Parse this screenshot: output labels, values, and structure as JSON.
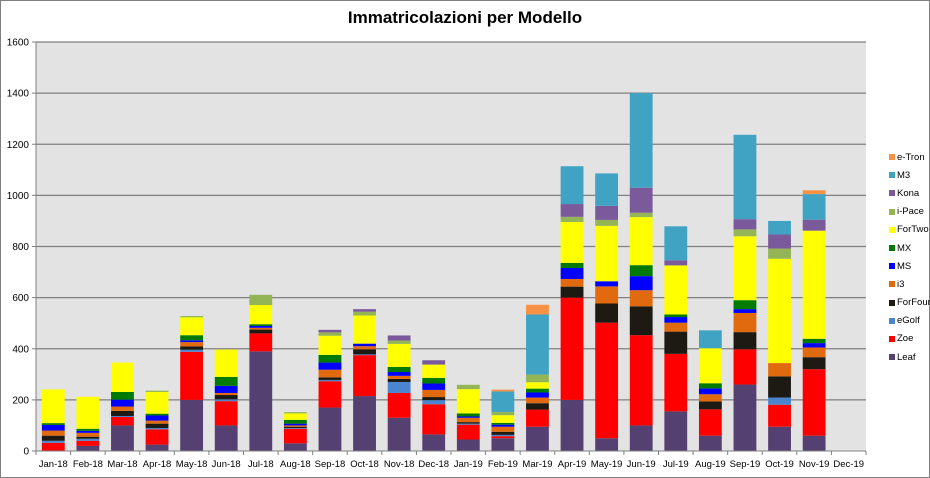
{
  "chart_data": {
    "type": "bar",
    "stacked": true,
    "title": "Immatricolazioni per Modello",
    "xlabel": "",
    "ylabel": "",
    "ylim": [
      0,
      1600
    ],
    "yticks": [
      0,
      200,
      400,
      600,
      800,
      1000,
      1200,
      1400,
      1600
    ],
    "grid": true,
    "legend_position": "right",
    "categories": [
      "Jan-18",
      "Feb-18",
      "Mar-18",
      "Apr-18",
      "May-18",
      "Jun-18",
      "Jul-18",
      "Aug-18",
      "Sep-18",
      "Oct-18",
      "Nov-18",
      "Dec-18",
      "Jan-19",
      "Feb-19",
      "Mar-19",
      "Apr-19",
      "May-19",
      "Jun-19",
      "Jul-19",
      "Aug-19",
      "Sep-19",
      "Oct-19",
      "Nov-19",
      "Dec-19"
    ],
    "series": [
      {
        "name": "Leaf",
        "color": "#554171",
        "values": [
          0,
          20,
          100,
          25,
          200,
          100,
          390,
          30,
          170,
          215,
          130,
          65,
          45,
          50,
          95,
          200,
          50,
          100,
          155,
          60,
          260,
          95,
          60,
          0
        ]
      },
      {
        "name": "Zoe",
        "color": "#ff0000",
        "values": [
          32,
          20,
          33,
          60,
          188,
          95,
          70,
          57,
          103,
          160,
          97,
          118,
          58,
          8,
          67,
          400,
          452,
          353,
          225,
          103,
          138,
          86,
          260,
          0
        ]
      },
      {
        "name": "eGolf",
        "color": "#4a86d0",
        "values": [
          8,
          8,
          4,
          5,
          8,
          7,
          0,
          3,
          5,
          3,
          43,
          16,
          4,
          5,
          0,
          0,
          0,
          0,
          0,
          0,
          0,
          28,
          0,
          0
        ]
      },
      {
        "name": "ForFour",
        "color": "#1d1a14",
        "values": [
          20,
          8,
          20,
          17,
          13,
          17,
          15,
          5,
          10,
          20,
          12,
          12,
          6,
          12,
          25,
          43,
          75,
          113,
          87,
          31,
          67,
          83,
          47,
          0
        ]
      },
      {
        "name": "i3",
        "color": "#e26a0e",
        "values": [
          20,
          15,
          17,
          12,
          17,
          8,
          7,
          5,
          30,
          12,
          12,
          28,
          17,
          20,
          22,
          30,
          67,
          63,
          35,
          28,
          75,
          52,
          38,
          0
        ]
      },
      {
        "name": "MS",
        "color": "#0000ff",
        "values": [
          22,
          8,
          27,
          20,
          7,
          28,
          7,
          7,
          28,
          10,
          15,
          25,
          5,
          8,
          20,
          43,
          20,
          55,
          22,
          23,
          15,
          0,
          17,
          0
        ]
      },
      {
        "name": "MX",
        "color": "#007a00",
        "values": [
          7,
          8,
          30,
          7,
          20,
          35,
          7,
          15,
          30,
          0,
          20,
          22,
          12,
          7,
          15,
          20,
          0,
          43,
          10,
          20,
          35,
          0,
          17,
          0
        ]
      },
      {
        "name": "ForTwo",
        "color": "#ffff00",
        "values": [
          132,
          125,
          115,
          85,
          70,
          107,
          75,
          25,
          75,
          110,
          90,
          52,
          95,
          30,
          25,
          160,
          217,
          188,
          192,
          137,
          250,
          408,
          423,
          0
        ]
      },
      {
        "name": "i-Pace",
        "color": "#93b555",
        "values": [
          0,
          0,
          0,
          5,
          5,
          0,
          40,
          5,
          13,
          15,
          13,
          0,
          17,
          13,
          30,
          20,
          23,
          17,
          0,
          0,
          27,
          40,
          0,
          0
        ]
      },
      {
        "name": "Kona",
        "color": "#7a5a9a",
        "values": [
          0,
          0,
          0,
          0,
          0,
          0,
          0,
          0,
          10,
          10,
          20,
          17,
          0,
          0,
          0,
          50,
          55,
          98,
          20,
          0,
          40,
          55,
          43,
          0
        ]
      },
      {
        "name": "M3",
        "color": "#41a3c4",
        "values": [
          0,
          0,
          0,
          0,
          0,
          0,
          0,
          0,
          0,
          0,
          0,
          0,
          0,
          80,
          235,
          148,
          127,
          370,
          133,
          70,
          330,
          53,
          100,
          0
        ]
      },
      {
        "name": "e-Tron",
        "color": "#f79244",
        "values": [
          0,
          0,
          0,
          0,
          0,
          0,
          0,
          0,
          0,
          0,
          0,
          0,
          0,
          7,
          38,
          0,
          0,
          0,
          0,
          0,
          0,
          0,
          15,
          0
        ]
      }
    ]
  }
}
